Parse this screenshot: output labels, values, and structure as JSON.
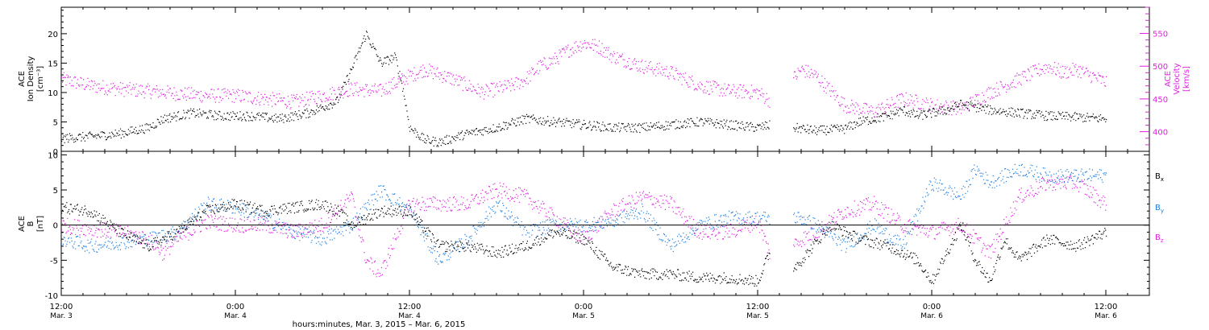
{
  "colors": {
    "black": "#000000",
    "magenta": "#e020e0",
    "blue": "#1e7fe0"
  },
  "x_axis": {
    "title": "hours:minutes, Mar.  3, 2015 – Mar.  6, 2015",
    "ticks": [
      {
        "hours": 0,
        "time": "12:00",
        "date": "Mar. 3"
      },
      {
        "hours": 12,
        "time": "0:00",
        "date": "Mar. 4"
      },
      {
        "hours": 24,
        "time": "12:00",
        "date": "Mar. 4"
      },
      {
        "hours": 36,
        "time": "0:00",
        "date": "Mar. 5"
      },
      {
        "hours": 48,
        "time": "12:00",
        "date": "Mar. 5"
      },
      {
        "hours": 60,
        "time": "0:00",
        "date": "Mar. 6"
      },
      {
        "hours": 72,
        "time": "12:00",
        "date": "Mar. 6"
      }
    ],
    "range_hours": [
      0,
      75
    ]
  },
  "top_panel": {
    "left_label": {
      "line1": "ACE",
      "line2": "Ion Density",
      "line3": "[cm⁻³]"
    },
    "right_label": {
      "line1": "ACE",
      "line2": "Velocity",
      "line3": "[km/s]"
    },
    "left_ticks": [
      "0",
      "5",
      "10",
      "15",
      "20"
    ],
    "right_ticks": [
      "400",
      "450",
      "500",
      "550"
    ]
  },
  "bottom_panel": {
    "left_label": {
      "line1": "ACE",
      "line2": "B",
      "line3": "[nT]"
    },
    "left_ticks": [
      "-10",
      "-5",
      "0",
      "5",
      "10"
    ],
    "legend": [
      {
        "label": "Bx",
        "sub": "x",
        "color": "#000000"
      },
      {
        "label": "By",
        "sub": "y",
        "color": "#1e7fe0"
      },
      {
        "label": "Bz",
        "sub": "z",
        "color": "#e020e0"
      }
    ]
  },
  "chart_data": [
    {
      "type": "scatter",
      "title": "",
      "xlabel": "hours:minutes, Mar.  3, 2015 – Mar.  6, 2015",
      "ylabel": "ACE Ion Density [cm⁻³]",
      "y2label": "ACE Velocity [km/s]",
      "x_unit": "hours since 2015-03-03 12:00",
      "ylim": [
        0,
        24.5
      ],
      "y2lim": [
        370,
        590
      ],
      "series": [
        {
          "name": "Ion Density",
          "axis": "left",
          "color": "#000000",
          "points": [
            [
              0,
              2.2
            ],
            [
              2,
              2.5
            ],
            [
              4,
              3.0
            ],
            [
              6,
              4.0
            ],
            [
              7,
              5.5
            ],
            [
              9,
              6.5
            ],
            [
              11,
              6.0
            ],
            [
              13,
              6.0
            ],
            [
              15,
              5.5
            ],
            [
              17,
              6.5
            ],
            [
              18,
              7.5
            ],
            [
              19,
              8.5
            ],
            [
              20,
              14
            ],
            [
              21,
              20
            ],
            [
              22,
              15
            ],
            [
              23,
              16
            ],
            [
              23.5,
              11
            ],
            [
              24,
              4
            ],
            [
              25,
              2
            ],
            [
              26,
              1.5
            ],
            [
              28,
              3
            ],
            [
              30,
              4
            ],
            [
              32,
              5.5
            ],
            [
              34,
              5
            ],
            [
              36,
              4.5
            ],
            [
              38,
              4
            ],
            [
              40,
              4
            ],
            [
              42,
              4.5
            ],
            [
              44,
              5
            ],
            [
              46,
              4.5
            ],
            [
              48,
              4
            ],
            [
              49,
              4.5
            ],
            [
              52,
              3.5
            ],
            [
              54,
              3.8
            ],
            [
              55,
              5
            ],
            [
              57,
              6
            ],
            [
              58,
              7
            ],
            [
              59,
              6
            ],
            [
              61,
              7
            ],
            [
              62,
              8
            ],
            [
              64,
              7
            ],
            [
              66,
              6.5
            ],
            [
              68,
              6
            ],
            [
              70,
              5.8
            ],
            [
              72,
              5.5
            ]
          ]
        },
        {
          "name": "Velocity",
          "axis": "right",
          "color": "#e020e0",
          "points": [
            [
              0,
              480
            ],
            [
              2,
              470
            ],
            [
              4,
              465
            ],
            [
              6,
              462
            ],
            [
              8,
              458
            ],
            [
              10,
              455
            ],
            [
              12,
              455
            ],
            [
              14,
              450
            ],
            [
              16,
              445
            ],
            [
              18,
              455
            ],
            [
              20,
              465
            ],
            [
              22,
              462
            ],
            [
              24,
              485
            ],
            [
              25,
              495
            ],
            [
              27,
              480
            ],
            [
              29,
              460
            ],
            [
              31,
              470
            ],
            [
              32,
              480
            ],
            [
              33,
              500
            ],
            [
              34,
              510
            ],
            [
              35,
              525
            ],
            [
              36,
              535
            ],
            [
              37,
              530
            ],
            [
              38,
              515
            ],
            [
              40,
              500
            ],
            [
              42,
              490
            ],
            [
              44,
              470
            ],
            [
              46,
              462
            ],
            [
              48,
              460
            ],
            [
              49,
              445
            ],
            [
              51,
              495
            ],
            [
              52,
              485
            ],
            [
              54,
              440
            ],
            [
              56,
              430
            ],
            [
              58,
              450
            ],
            [
              60,
              440
            ],
            [
              62,
              435
            ],
            [
              64,
              460
            ],
            [
              66,
              480
            ],
            [
              68,
              500
            ],
            [
              69,
              490
            ],
            [
              70,
              495
            ],
            [
              71,
              485
            ],
            [
              72,
              475
            ]
          ]
        }
      ]
    },
    {
      "type": "scatter",
      "title": "",
      "xlabel": "hours:minutes, Mar.  3, 2015 – Mar.  6, 2015",
      "ylabel": "ACE B [nT]",
      "x_unit": "hours since 2015-03-03 12:00",
      "ylim": [
        -10,
        10.5
      ],
      "series": [
        {
          "name": "Bx",
          "color": "#000000",
          "points": [
            [
              0,
              2.5
            ],
            [
              2,
              2
            ],
            [
              4,
              -1
            ],
            [
              6,
              -3
            ],
            [
              8,
              -1
            ],
            [
              10,
              2
            ],
            [
              12,
              3
            ],
            [
              14,
              2
            ],
            [
              16,
              2.5
            ],
            [
              18,
              3
            ],
            [
              19,
              2
            ],
            [
              20,
              0
            ],
            [
              22,
              2
            ],
            [
              24,
              2
            ],
            [
              26,
              -3
            ],
            [
              28,
              -3
            ],
            [
              30,
              -4
            ],
            [
              32,
              -3
            ],
            [
              34,
              -1
            ],
            [
              36,
              -2
            ],
            [
              37,
              -4
            ],
            [
              38,
              -6
            ],
            [
              40,
              -7
            ],
            [
              42,
              -7
            ],
            [
              44,
              -7.5
            ],
            [
              46,
              -7.5
            ],
            [
              48,
              -8
            ],
            [
              49,
              -3
            ],
            [
              50.5,
              -6
            ],
            [
              51,
              -5
            ],
            [
              53,
              0
            ],
            [
              55,
              -2
            ],
            [
              57,
              -3
            ],
            [
              59,
              -5
            ],
            [
              60,
              -8
            ],
            [
              61,
              -4
            ],
            [
              62,
              0
            ],
            [
              63,
              -5
            ],
            [
              64,
              -8
            ],
            [
              65,
              -2
            ],
            [
              66,
              -5
            ],
            [
              68,
              -2
            ],
            [
              70,
              -3
            ],
            [
              72,
              -1
            ]
          ]
        },
        {
          "name": "By",
          "color": "#1e7fe0",
          "points": [
            [
              0,
              -2
            ],
            [
              2,
              -3
            ],
            [
              4,
              -2.5
            ],
            [
              6,
              -2
            ],
            [
              8,
              -1
            ],
            [
              10,
              3
            ],
            [
              12,
              2.5
            ],
            [
              14,
              1
            ],
            [
              16,
              -1
            ],
            [
              18,
              -2
            ],
            [
              20,
              0
            ],
            [
              22,
              5
            ],
            [
              24,
              2
            ],
            [
              26,
              -5
            ],
            [
              28,
              -2
            ],
            [
              30,
              3
            ],
            [
              32,
              -1
            ],
            [
              34,
              0
            ],
            [
              36,
              0
            ],
            [
              38,
              0.5
            ],
            [
              40,
              2
            ],
            [
              42,
              -3
            ],
            [
              44,
              0
            ],
            [
              46,
              1
            ],
            [
              48,
              1
            ],
            [
              51,
              1
            ],
            [
              52,
              0
            ],
            [
              54,
              -3
            ],
            [
              56,
              0
            ],
            [
              58,
              -3
            ],
            [
              60,
              6
            ],
            [
              62,
              4
            ],
            [
              63,
              8
            ],
            [
              64,
              6
            ],
            [
              66,
              8
            ],
            [
              68,
              7
            ],
            [
              70,
              7
            ],
            [
              72,
              7
            ]
          ]
        },
        {
          "name": "Bz",
          "color": "#e020e0",
          "points": [
            [
              0,
              0
            ],
            [
              2,
              -0.5
            ],
            [
              4,
              -1
            ],
            [
              6,
              -2
            ],
            [
              7,
              -4
            ],
            [
              8,
              -2
            ],
            [
              10,
              0.5
            ],
            [
              12,
              0
            ],
            [
              14,
              0
            ],
            [
              16,
              -1
            ],
            [
              18,
              0
            ],
            [
              20,
              4
            ],
            [
              21,
              -5
            ],
            [
              22,
              -7
            ],
            [
              24,
              3
            ],
            [
              26,
              3
            ],
            [
              28,
              3
            ],
            [
              30,
              5
            ],
            [
              32,
              4
            ],
            [
              34,
              1
            ],
            [
              36,
              -2
            ],
            [
              38,
              2
            ],
            [
              40,
              4
            ],
            [
              42,
              3
            ],
            [
              44,
              -1
            ],
            [
              46,
              -1
            ],
            [
              48,
              0.5
            ],
            [
              49,
              -5
            ],
            [
              51,
              -2
            ],
            [
              52,
              -1
            ],
            [
              54,
              2
            ],
            [
              56,
              3
            ],
            [
              58,
              0
            ],
            [
              60,
              -1
            ],
            [
              62,
              0
            ],
            [
              64,
              -4
            ],
            [
              66,
              4
            ],
            [
              68,
              6
            ],
            [
              70,
              6
            ],
            [
              72,
              3
            ]
          ]
        }
      ]
    }
  ]
}
